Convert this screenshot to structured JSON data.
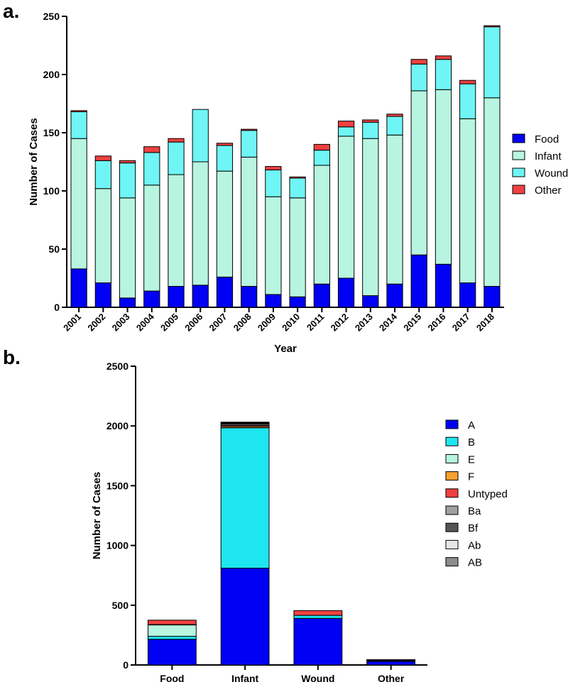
{
  "panels": {
    "a_label": "a.",
    "b_label": "b."
  },
  "chart_data": [
    {
      "type": "bar",
      "stacked": true,
      "xlabel": "Year",
      "ylabel": "Number of Cases",
      "ylim": [
        0,
        250
      ],
      "yticks": [
        0,
        50,
        100,
        150,
        200,
        250
      ],
      "categories": [
        "2001",
        "2002",
        "2003",
        "2004",
        "2005",
        "2006",
        "2007",
        "2008",
        "2009",
        "2010",
        "2011",
        "2012",
        "2013",
        "2014",
        "2015",
        "2016",
        "2017",
        "2018"
      ],
      "legend_position": "right",
      "series": [
        {
          "name": "Food",
          "color": "#0000f5",
          "values": [
            33,
            21,
            8,
            14,
            18,
            19,
            26,
            18,
            11,
            9,
            20,
            25,
            10,
            20,
            45,
            37,
            21,
            18
          ]
        },
        {
          "name": "Infant",
          "color": "#b7f5e0",
          "values": [
            112,
            81,
            86,
            91,
            96,
            106,
            91,
            111,
            84,
            85,
            102,
            122,
            135,
            128,
            141,
            150,
            141,
            162
          ]
        },
        {
          "name": "Wound",
          "color": "#6ff5f5",
          "values": [
            23,
            24,
            30,
            28,
            28,
            45,
            22,
            23,
            23,
            17,
            13,
            8,
            14,
            16,
            23,
            26,
            30,
            61
          ]
        },
        {
          "name": "Other",
          "color": "#f04040",
          "values": [
            1,
            4,
            2,
            5,
            3,
            0,
            2,
            1,
            3,
            1,
            5,
            5,
            2,
            2,
            4,
            3,
            3,
            1
          ]
        }
      ]
    },
    {
      "type": "bar",
      "stacked": true,
      "xlabel": "",
      "ylabel": "Number of Cases",
      "ylim": [
        0,
        2500
      ],
      "yticks": [
        0,
        500,
        1000,
        1500,
        2000,
        2500
      ],
      "categories": [
        "Food",
        "Infant",
        "Wound",
        "Other"
      ],
      "legend_position": "right",
      "series": [
        {
          "name": "A",
          "color": "#0000f5",
          "values": [
            215,
            810,
            390,
            30
          ]
        },
        {
          "name": "B",
          "color": "#1ee6f0",
          "values": [
            25,
            1175,
            25,
            5
          ]
        },
        {
          "name": "E",
          "color": "#b7f5e0",
          "values": [
            95,
            0,
            0,
            3
          ]
        },
        {
          "name": "F",
          "color": "#f5a030",
          "values": [
            3,
            10,
            0,
            0
          ]
        },
        {
          "name": "Untyped",
          "color": "#f04040",
          "values": [
            37,
            10,
            40,
            7
          ]
        },
        {
          "name": "Ba",
          "color": "#a0a0a0",
          "values": [
            0,
            10,
            0,
            0
          ]
        },
        {
          "name": "Bf",
          "color": "#555555",
          "values": [
            0,
            7,
            0,
            0
          ]
        },
        {
          "name": "Ab",
          "color": "#e6e6e6",
          "values": [
            0,
            5,
            0,
            0
          ]
        },
        {
          "name": "AB",
          "color": "#8c8c8c",
          "values": [
            0,
            5,
            0,
            0
          ]
        }
      ]
    }
  ]
}
